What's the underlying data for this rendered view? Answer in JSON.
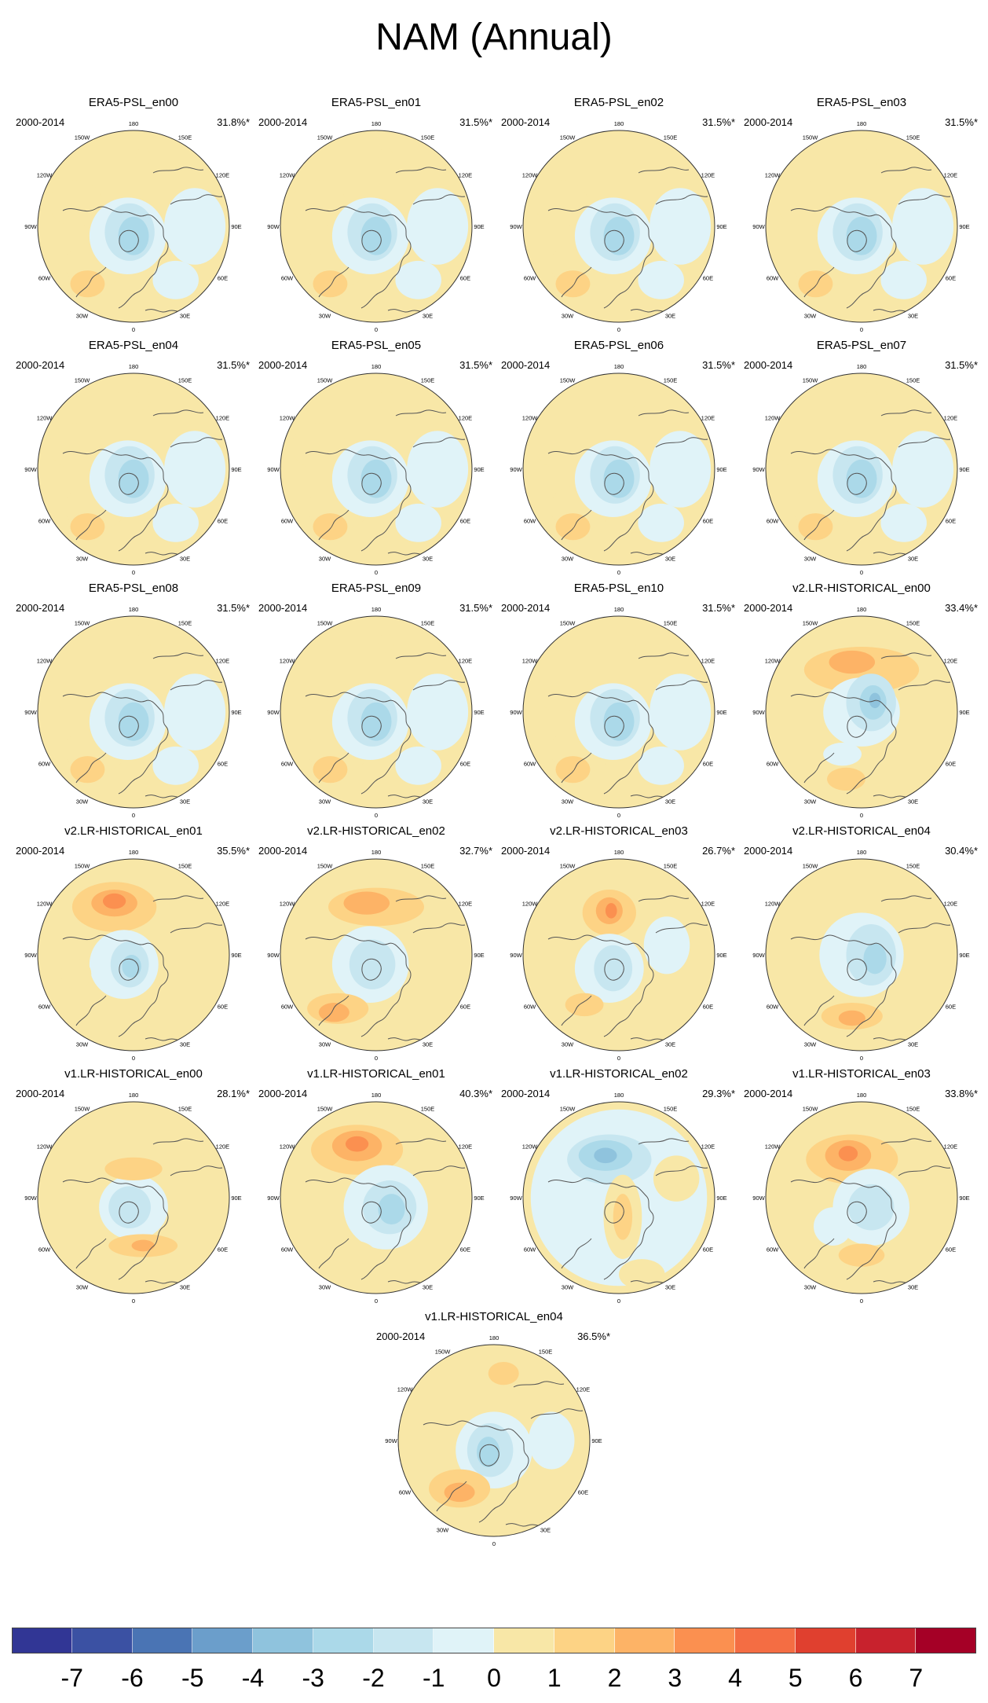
{
  "title": "NAM (Annual)",
  "panels": [
    {
      "title": "ERA5-PSL_en00",
      "period": "2000-2014",
      "pct": "31.8%*",
      "pattern": "era5"
    },
    {
      "title": "ERA5-PSL_en01",
      "period": "2000-2014",
      "pct": "31.5%*",
      "pattern": "era5"
    },
    {
      "title": "ERA5-PSL_en02",
      "period": "2000-2014",
      "pct": "31.5%*",
      "pattern": "era5"
    },
    {
      "title": "ERA5-PSL_en03",
      "period": "2000-2014",
      "pct": "31.5%*",
      "pattern": "era5"
    },
    {
      "title": "ERA5-PSL_en04",
      "period": "2000-2014",
      "pct": "31.5%*",
      "pattern": "era5"
    },
    {
      "title": "ERA5-PSL_en05",
      "period": "2000-2014",
      "pct": "31.5%*",
      "pattern": "era5"
    },
    {
      "title": "ERA5-PSL_en06",
      "period": "2000-2014",
      "pct": "31.5%*",
      "pattern": "era5"
    },
    {
      "title": "ERA5-PSL_en07",
      "period": "2000-2014",
      "pct": "31.5%*",
      "pattern": "era5"
    },
    {
      "title": "ERA5-PSL_en08",
      "period": "2000-2014",
      "pct": "31.5%*",
      "pattern": "era5"
    },
    {
      "title": "ERA5-PSL_en09",
      "period": "2000-2014",
      "pct": "31.5%*",
      "pattern": "era5"
    },
    {
      "title": "ERA5-PSL_en10",
      "period": "2000-2014",
      "pct": "31.5%*",
      "pattern": "era5"
    },
    {
      "title": "v2.LR-HISTORICAL_en00",
      "period": "2000-2014",
      "pct": "33.4%*",
      "pattern": "v2a"
    },
    {
      "title": "v2.LR-HISTORICAL_en01",
      "period": "2000-2014",
      "pct": "35.5%*",
      "pattern": "v2b"
    },
    {
      "title": "v2.LR-HISTORICAL_en02",
      "period": "2000-2014",
      "pct": "32.7%*",
      "pattern": "v2c"
    },
    {
      "title": "v2.LR-HISTORICAL_en03",
      "period": "2000-2014",
      "pct": "26.7%*",
      "pattern": "v2d"
    },
    {
      "title": "v2.LR-HISTORICAL_en04",
      "period": "2000-2014",
      "pct": "30.4%*",
      "pattern": "v2e"
    },
    {
      "title": "v1.LR-HISTORICAL_en00",
      "period": "2000-2014",
      "pct": "28.1%*",
      "pattern": "v1a"
    },
    {
      "title": "v1.LR-HISTORICAL_en01",
      "period": "2000-2014",
      "pct": "40.3%*",
      "pattern": "v1b"
    },
    {
      "title": "v1.LR-HISTORICAL_en02",
      "period": "2000-2014",
      "pct": "29.3%*",
      "pattern": "v1c"
    },
    {
      "title": "v1.LR-HISTORICAL_en03",
      "period": "2000-2014",
      "pct": "33.8%*",
      "pattern": "v1d"
    },
    {
      "title": "v1.LR-HISTORICAL_en04",
      "period": "2000-2014",
      "pct": "36.5%*",
      "pattern": "v1e"
    }
  ],
  "lon_labels": [
    "180",
    "150E",
    "120E",
    "90E",
    "60E",
    "30E",
    "0",
    "30W",
    "60W",
    "90W",
    "120W",
    "150W"
  ],
  "colorbar": {
    "colors": [
      "#313695",
      "#3b51a3",
      "#4a74b4",
      "#6b9ecb",
      "#8fc3dd",
      "#abd9e9",
      "#c7e6f0",
      "#e0f3f8",
      "#f8e7a7",
      "#fdd385",
      "#fdb366",
      "#fb9050",
      "#f46d43",
      "#e0402f",
      "#c8222d",
      "#a50026"
    ],
    "ticks": [
      "-7",
      "-6",
      "-5",
      "-4",
      "-3",
      "-2",
      "-1",
      "0",
      "1",
      "2",
      "3",
      "4",
      "5",
      "6",
      "7"
    ]
  }
}
